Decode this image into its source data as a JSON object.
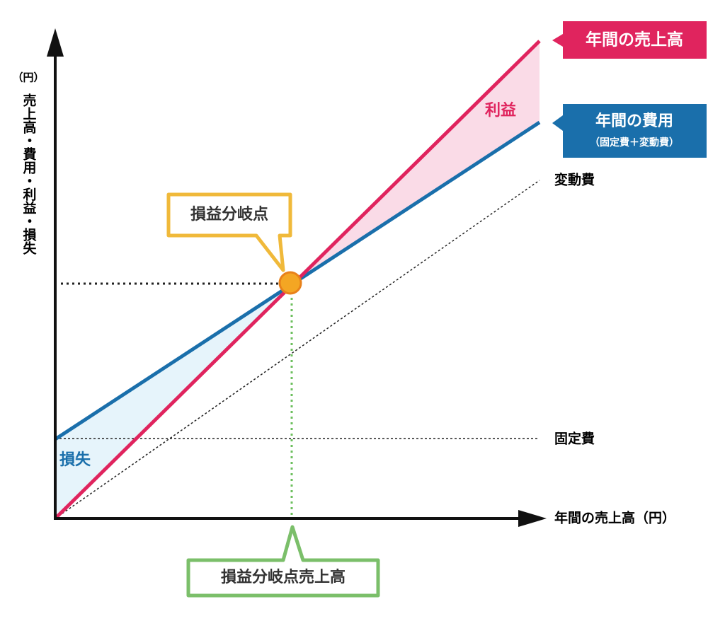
{
  "axes": {
    "y_unit": "（円）",
    "y_label": "売上高・費用・利益・損失",
    "x_label": "年間の売上高（円）"
  },
  "lines": {
    "sales": {
      "label": "年間の売上高"
    },
    "cost": {
      "label": "年間の費用",
      "sublabel": "（固定費＋変動費）"
    },
    "variable": {
      "label": "変動費"
    },
    "fixed": {
      "label": "固定費"
    }
  },
  "regions": {
    "profit": "利益",
    "loss": "損失"
  },
  "callouts": {
    "break_even_point": "損益分岐点",
    "break_even_sales": "損益分岐点売上高"
  }
}
